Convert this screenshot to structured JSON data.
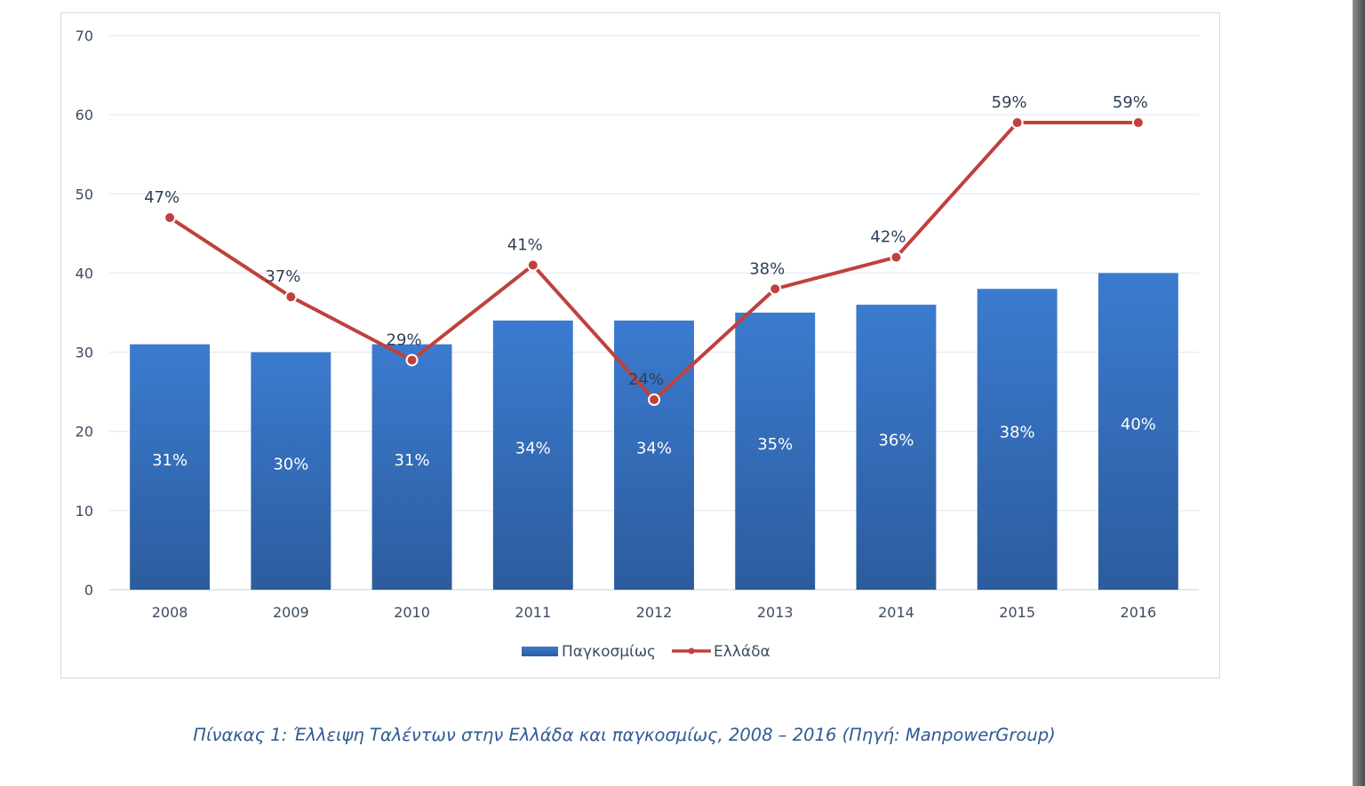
{
  "caption": "Πίνακας 1: Έλλειψη Ταλέντων στην Ελλάδα και παγκοσμίως, 2008 – 2016 (Πηγή: ManpowerGroup)",
  "chart_data": {
    "type": "bar",
    "title": "",
    "xlabel": "",
    "ylabel": "",
    "ylim": [
      0,
      70
    ],
    "yticks": [
      "0",
      "10",
      "20",
      "30",
      "40",
      "50",
      "60",
      "70"
    ],
    "grid": true,
    "legend_position": "bottom",
    "categories": [
      "2008",
      "2009",
      "2010",
      "2011",
      "2012",
      "2013",
      "2014",
      "2015",
      "2016"
    ],
    "series": [
      {
        "name": "Παγκοσμίως",
        "kind": "bar",
        "color": "#3a78c8",
        "values": [
          31,
          30,
          31,
          34,
          34,
          35,
          36,
          38,
          40
        ],
        "labels": [
          "31%",
          "30%",
          "31%",
          "34%",
          "34%",
          "35%",
          "36%",
          "38%",
          "40%"
        ]
      },
      {
        "name": "Ελλάδα",
        "kind": "line",
        "color": "#c0413c",
        "values": [
          47,
          37,
          29,
          41,
          24,
          38,
          42,
          59,
          59
        ],
        "labels": [
          "47%",
          "37%",
          "29%",
          "41%",
          "24%",
          "38%",
          "42%",
          "59%",
          "59%"
        ]
      }
    ]
  }
}
